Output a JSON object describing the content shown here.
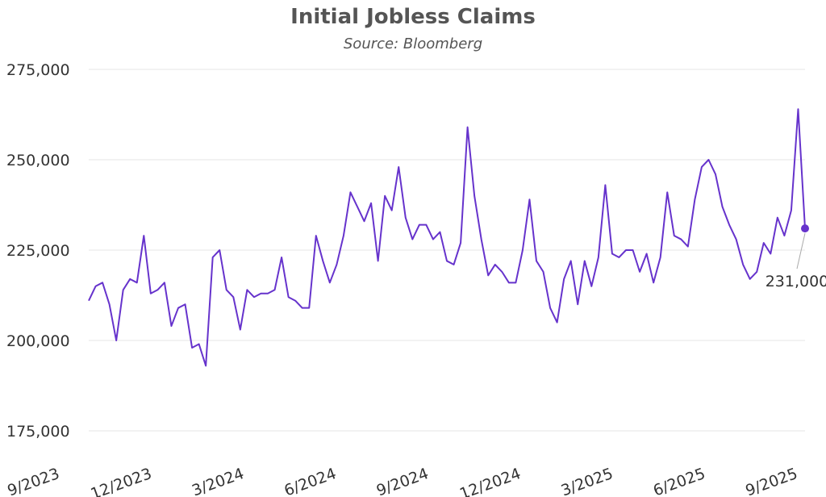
{
  "chart_data": {
    "type": "line",
    "title": "Initial Jobless Claims",
    "subtitle": "Source: Bloomberg",
    "xlabel": "",
    "ylabel": "",
    "ylim": [
      175000,
      275000
    ],
    "y_ticks": [
      "175,000",
      "200,000",
      "225,000",
      "250,000",
      "275,000"
    ],
    "x_ticks": [
      "9/2023",
      "12/2023",
      "3/2024",
      "6/2024",
      "9/2024",
      "12/2024",
      "3/2025",
      "6/2025",
      "9/2025"
    ],
    "grid": true,
    "line_color": "#6633cc",
    "series": [
      {
        "values": [
          211000,
          215000,
          216000,
          210000,
          200000,
          214000,
          217000,
          216000,
          229000,
          213000,
          214000,
          216000,
          204000,
          209000,
          210000,
          198000,
          199000,
          193000,
          223000,
          225000,
          214000,
          212000,
          203000,
          214000,
          212000,
          213000,
          213000,
          214000,
          223000,
          212000,
          211000,
          209000,
          209000,
          229000,
          222000,
          216000,
          221000,
          229000,
          241000,
          237000,
          233000,
          238000,
          222000,
          240000,
          236000,
          248000,
          234000,
          228000,
          232000,
          232000,
          228000,
          230000,
          222000,
          221000,
          227000,
          259000,
          240000,
          228000,
          218000,
          221000,
          219000,
          216000,
          216000,
          225000,
          239000,
          222000,
          219000,
          209000,
          205000,
          217000,
          222000,
          210000,
          222000,
          215000,
          223000,
          243000,
          224000,
          223000,
          225000,
          225000,
          219000,
          224000,
          216000,
          223000,
          241000,
          229000,
          228000,
          226000,
          239000,
          248000,
          250000,
          246000,
          237000,
          232000,
          228000,
          221000,
          217000,
          219000,
          227000,
          224000,
          234000,
          229000,
          236000,
          264000,
          231000
        ]
      }
    ],
    "annotation": {
      "label": "231,000",
      "value": 231000
    }
  }
}
